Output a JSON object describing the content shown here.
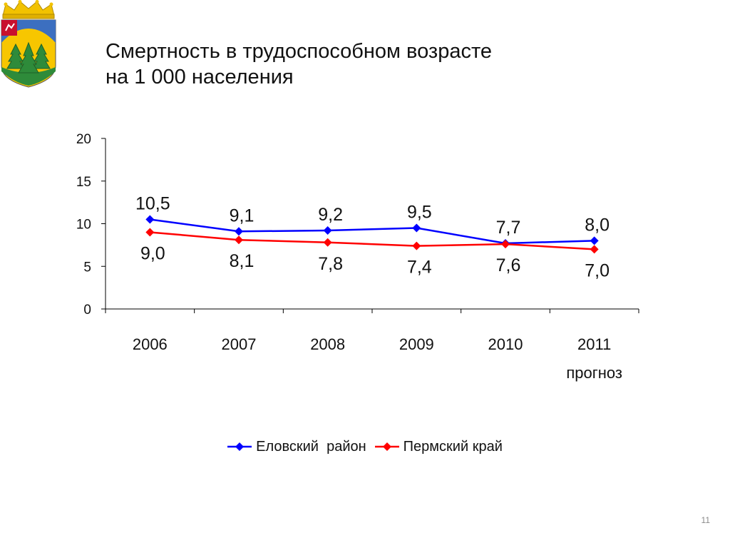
{
  "slide": {
    "title_line1": "Смертность в трудоспособном возрасте",
    "title_line2": "на 1 000 населения",
    "page_number": "11",
    "emblem": "coat-of-arms"
  },
  "chart_data": {
    "type": "line",
    "categories": [
      "2006",
      "2007",
      "2008",
      "2009",
      "2010",
      "2011"
    ],
    "category_sublabels": [
      "",
      "",
      "",
      "",
      "",
      "прогноз"
    ],
    "ylim": [
      0,
      20
    ],
    "yticks": [
      0,
      5,
      10,
      15,
      20
    ],
    "grid": false,
    "legend_position": "bottom",
    "series": [
      {
        "name": "Еловский  район",
        "color": "#0000FF",
        "values": [
          10.5,
          9.1,
          9.2,
          9.5,
          7.7,
          8.0
        ],
        "labels": [
          "10,5",
          "9,1",
          "9,2",
          "9,5",
          "7,7",
          "8,0"
        ]
      },
      {
        "name": "Пермский край",
        "color": "#FF0000",
        "values": [
          9.0,
          8.1,
          7.8,
          7.4,
          7.6,
          7.0
        ],
        "labels": [
          "9,0",
          "8,1",
          "7,8",
          "7,4",
          "7,6",
          "7,0"
        ]
      }
    ]
  }
}
